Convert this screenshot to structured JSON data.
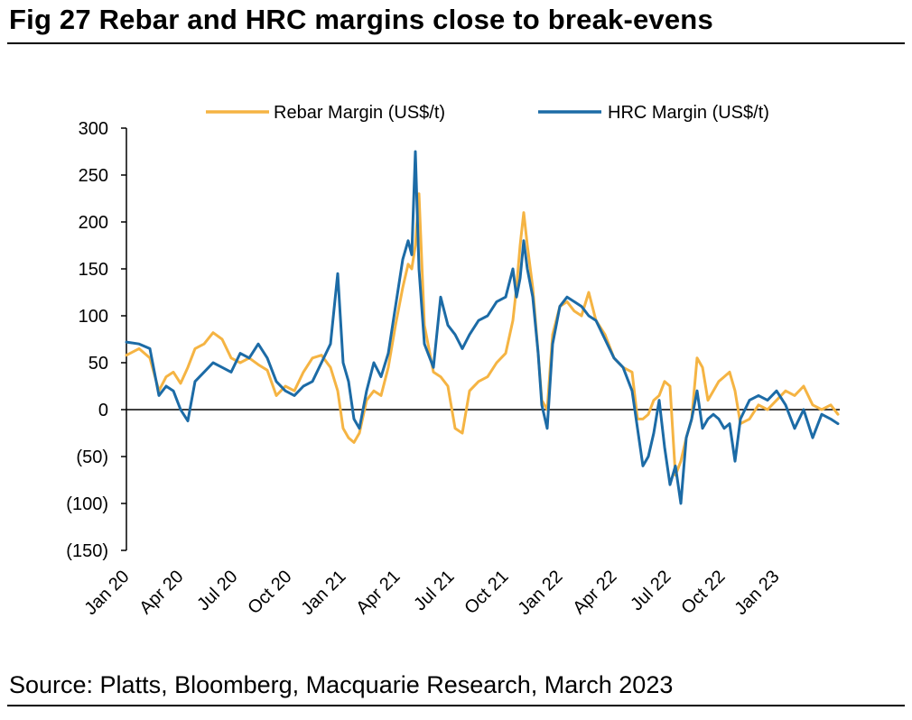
{
  "title": "Fig 27  Rebar and HRC margins close to break-evens",
  "source": "Source: Platts, Bloomberg, Macquarie Research, March 2023",
  "chart_data": {
    "type": "line",
    "title": "Fig 27  Rebar and HRC margins close to break-evens",
    "xlabel": "",
    "ylabel": "",
    "ylim": [
      -150,
      300
    ],
    "y_ticks": [
      300,
      250,
      200,
      150,
      100,
      50,
      0,
      -50,
      -100,
      -150
    ],
    "y_tick_labels": [
      "300",
      "250",
      "200",
      "150",
      "100",
      "50",
      "0",
      "(50)",
      "(100)",
      "(150)"
    ],
    "x_ticks": [
      "Jan 20",
      "Apr 20",
      "Jul 20",
      "Oct 20",
      "Jan 21",
      "Apr 21",
      "Jul 21",
      "Oct 21",
      "Jan 22",
      "Apr 22",
      "Jul 22",
      "Oct 22",
      "Jan 23"
    ],
    "x_range_months": [
      0,
      39.5
    ],
    "legend_position": "top",
    "grid": false,
    "series": [
      {
        "name": "Rebar Margin (US$/t)",
        "color": "#F5B443",
        "x_months": [
          0,
          0.7,
          1.3,
          1.8,
          2.2,
          2.6,
          3,
          3.4,
          3.8,
          4.3,
          4.8,
          5.3,
          5.8,
          6.3,
          6.8,
          7.3,
          7.8,
          8.3,
          8.8,
          9.3,
          9.8,
          10.3,
          10.8,
          11.3,
          11.7,
          12,
          12.3,
          12.6,
          12.9,
          13.3,
          13.7,
          14.1,
          14.5,
          14.9,
          15.3,
          15.6,
          15.8,
          16,
          16.2,
          16.5,
          17,
          17.4,
          17.8,
          18.2,
          18.6,
          19,
          19.5,
          20,
          20.5,
          21,
          21.4,
          21.6,
          21.8,
          22,
          22.2,
          22.5,
          22.8,
          23,
          23.3,
          23.6,
          24,
          24.4,
          24.8,
          25.2,
          25.6,
          26,
          26.5,
          27,
          27.5,
          28,
          28.3,
          28.6,
          28.9,
          29.2,
          29.5,
          29.8,
          30.1,
          30.4,
          30.7,
          31,
          31.3,
          31.6,
          31.9,
          32.2,
          32.5,
          32.8,
          33.1,
          33.4,
          33.7,
          34,
          34.5,
          35,
          35.5,
          36,
          36.5,
          37,
          37.5,
          38,
          38.5,
          39,
          39.4
        ],
        "values": [
          58,
          65,
          55,
          20,
          35,
          40,
          28,
          45,
          65,
          70,
          82,
          75,
          55,
          50,
          55,
          48,
          42,
          15,
          25,
          20,
          40,
          55,
          58,
          45,
          20,
          -20,
          -30,
          -35,
          -25,
          10,
          20,
          15,
          45,
          90,
          130,
          155,
          150,
          175,
          230,
          90,
          40,
          35,
          25,
          -20,
          -25,
          20,
          30,
          35,
          50,
          60,
          95,
          130,
          175,
          210,
          175,
          130,
          60,
          10,
          0,
          80,
          110,
          115,
          105,
          100,
          125,
          95,
          80,
          55,
          45,
          40,
          -10,
          -10,
          -5,
          10,
          15,
          30,
          25,
          -70,
          -55,
          -30,
          -10,
          55,
          45,
          10,
          20,
          30,
          35,
          40,
          20,
          -15,
          -10,
          5,
          0,
          10,
          20,
          15,
          25,
          5,
          0,
          5,
          -5
        ]
      },
      {
        "name": "HRC Margin (US$/t)",
        "color": "#1C6BA6",
        "x_months": [
          0,
          0.7,
          1.3,
          1.8,
          2.2,
          2.6,
          3,
          3.4,
          3.8,
          4.3,
          4.8,
          5.3,
          5.8,
          6.3,
          6.8,
          7.3,
          7.8,
          8.3,
          8.8,
          9.3,
          9.8,
          10.3,
          10.8,
          11.3,
          11.7,
          12,
          12.3,
          12.6,
          12.9,
          13.3,
          13.7,
          14.1,
          14.5,
          14.9,
          15.3,
          15.6,
          15.8,
          16,
          16.2,
          16.5,
          17,
          17.4,
          17.8,
          18.2,
          18.6,
          19,
          19.5,
          20,
          20.5,
          21,
          21.4,
          21.6,
          21.8,
          22,
          22.2,
          22.5,
          22.8,
          23,
          23.3,
          23.6,
          24,
          24.4,
          24.8,
          25.2,
          25.6,
          26,
          26.5,
          27,
          27.5,
          28,
          28.3,
          28.6,
          28.9,
          29.2,
          29.5,
          29.8,
          30.1,
          30.4,
          30.7,
          31,
          31.3,
          31.6,
          31.9,
          32.2,
          32.5,
          32.8,
          33.1,
          33.4,
          33.7,
          34,
          34.5,
          35,
          35.5,
          36,
          36.5,
          37,
          37.5,
          38,
          38.5,
          39,
          39.4
        ],
        "values": [
          72,
          70,
          65,
          15,
          25,
          20,
          0,
          -12,
          30,
          40,
          50,
          45,
          40,
          60,
          55,
          70,
          55,
          30,
          20,
          15,
          25,
          30,
          50,
          70,
          145,
          50,
          30,
          -10,
          -20,
          20,
          50,
          35,
          60,
          110,
          160,
          180,
          165,
          275,
          150,
          70,
          45,
          120,
          90,
          80,
          65,
          80,
          95,
          100,
          115,
          120,
          150,
          120,
          140,
          180,
          150,
          120,
          60,
          5,
          -20,
          70,
          110,
          120,
          115,
          110,
          100,
          95,
          75,
          55,
          45,
          20,
          -20,
          -60,
          -50,
          -25,
          10,
          -40,
          -80,
          -60,
          -100,
          -30,
          -10,
          20,
          -20,
          -10,
          -5,
          -10,
          -20,
          -15,
          -55,
          -10,
          10,
          15,
          10,
          20,
          5,
          -20,
          0,
          -30,
          -5,
          -10,
          -15
        ]
      }
    ]
  }
}
